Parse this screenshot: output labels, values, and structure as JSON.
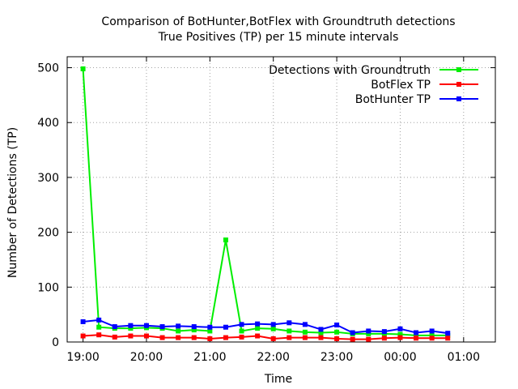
{
  "chart_data": {
    "type": "line",
    "title": "Comparison of BotHunter,BotFlex with Groundtruth detections",
    "subtitle": "True Positives (TP) per 15 minute intervals",
    "xlabel": "Time",
    "ylabel": "Number of Detections (TP)",
    "x_tick_labels": [
      "19:00",
      "20:00",
      "21:00",
      "22:00",
      "23:00",
      "00:00",
      "01:00"
    ],
    "y_tick_labels": [
      "0",
      "100",
      "200",
      "300",
      "400",
      "500"
    ],
    "x_tick_values_hours": [
      0,
      1,
      2,
      3,
      4,
      5,
      6
    ],
    "y_tick_values": [
      0,
      100,
      200,
      300,
      400,
      500
    ],
    "xlim_hours": [
      -0.25,
      6.5
    ],
    "ylim": [
      0,
      520
    ],
    "grid": true,
    "legend_position": "top-right",
    "x_hours": [
      0,
      0.25,
      0.5,
      0.75,
      1,
      1.25,
      1.5,
      1.75,
      2,
      2.25,
      2.5,
      2.75,
      3,
      3.25,
      3.5,
      3.75,
      4,
      4.25,
      4.5,
      4.75,
      5,
      5.25,
      5.5,
      5.75
    ],
    "series": [
      {
        "name": "Detections with Groundtruth",
        "color": "#00ee00",
        "values": [
          498,
          27,
          25,
          25,
          26,
          25,
          20,
          22,
          20,
          186,
          20,
          25,
          24,
          20,
          18,
          17,
          18,
          15,
          15,
          15,
          14,
          12,
          12,
          12
        ]
      },
      {
        "name": "BotFlex TP",
        "color": "#ff0000",
        "values": [
          11,
          13,
          9,
          11,
          11,
          8,
          8,
          8,
          6,
          8,
          9,
          11,
          6,
          8,
          8,
          8,
          6,
          5,
          5,
          7,
          8,
          7,
          7,
          7
        ]
      },
      {
        "name": "BotHunter TP",
        "color": "#0000ff",
        "values": [
          37,
          40,
          28,
          30,
          30,
          28,
          29,
          28,
          27,
          27,
          32,
          33,
          32,
          35,
          32,
          23,
          31,
          17,
          20,
          19,
          24,
          17,
          20,
          16
        ]
      }
    ]
  }
}
